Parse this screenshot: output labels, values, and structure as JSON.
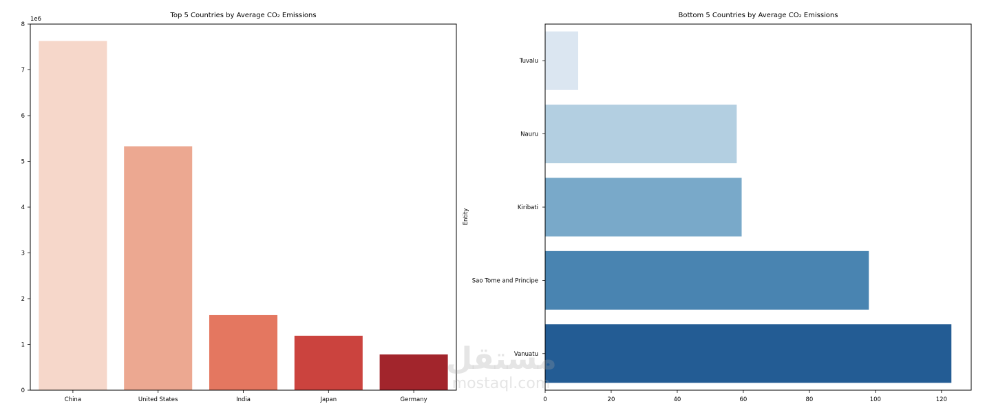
{
  "chart_data": [
    {
      "type": "bar",
      "orientation": "vertical",
      "title": "Top 5 Countries by Average CO₂ Emissions",
      "xlabel": "",
      "ylabel": "",
      "scale_label": "1e6",
      "categories": [
        "China",
        "United States",
        "India",
        "Japan",
        "Germany"
      ],
      "values": [
        7630000,
        5330000,
        1640000,
        1190000,
        780000
      ],
      "colors": [
        "#f6d7ca",
        "#eca891",
        "#e47760",
        "#cb433e",
        "#a2252c"
      ],
      "ylim": [
        0,
        8000000
      ],
      "yticks": [
        0,
        1000000,
        2000000,
        3000000,
        4000000,
        5000000,
        6000000,
        7000000,
        8000000
      ],
      "ytick_labels": [
        "0",
        "1",
        "2",
        "3",
        "4",
        "5",
        "6",
        "7",
        "8"
      ],
      "grid": false
    },
    {
      "type": "bar",
      "orientation": "horizontal",
      "title": "Bottom 5 Countries by Average CO₂ Emissions",
      "xlabel": "",
      "ylabel": "Entity",
      "categories": [
        "Tuvalu",
        "Nauru",
        "Kiribati",
        "Sao Tome and Principe",
        "Vanuatu"
      ],
      "values": [
        10,
        58,
        59.5,
        98,
        123
      ],
      "colors": [
        "#dbe6f1",
        "#b3cfe1",
        "#79a9c9",
        "#4984b1",
        "#235c94"
      ],
      "xlim": [
        0,
        129
      ],
      "xticks": [
        0,
        20,
        40,
        60,
        80,
        100,
        120
      ],
      "xtick_labels": [
        "0",
        "20",
        "40",
        "60",
        "80",
        "100",
        "120"
      ],
      "grid": false
    }
  ],
  "watermark": {
    "arabic": "مستقل",
    "latin": "mostaql.com"
  }
}
